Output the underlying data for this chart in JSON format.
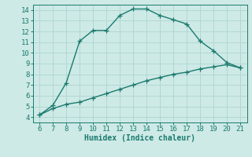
{
  "x": [
    6,
    7,
    8,
    9,
    10,
    11,
    12,
    13,
    14,
    15,
    16,
    17,
    18,
    19,
    20,
    21
  ],
  "upper_y": [
    4.2,
    5.1,
    7.2,
    11.1,
    12.1,
    12.1,
    13.5,
    14.1,
    14.1,
    13.5,
    13.1,
    12.7,
    11.1,
    10.2,
    9.1,
    8.6
  ],
  "lower_y": [
    4.2,
    4.8,
    5.2,
    5.4,
    5.8,
    6.2,
    6.6,
    7.0,
    7.4,
    7.7,
    8.0,
    8.2,
    8.5,
    8.7,
    8.9,
    8.6
  ],
  "line_color": "#1a7a6e",
  "bg_color": "#ceeae6",
  "grid_color": "#b0d8d4",
  "xlabel": "Humidex (Indice chaleur)",
  "xlim": [
    5.5,
    21.5
  ],
  "ylim": [
    3.5,
    14.5
  ],
  "xticks": [
    6,
    7,
    8,
    9,
    10,
    11,
    12,
    13,
    14,
    15,
    16,
    17,
    18,
    19,
    20,
    21
  ],
  "yticks": [
    4,
    5,
    6,
    7,
    8,
    9,
    10,
    11,
    12,
    13,
    14
  ],
  "marker_size": 4,
  "line_width": 1.0,
  "font_size": 6.5
}
